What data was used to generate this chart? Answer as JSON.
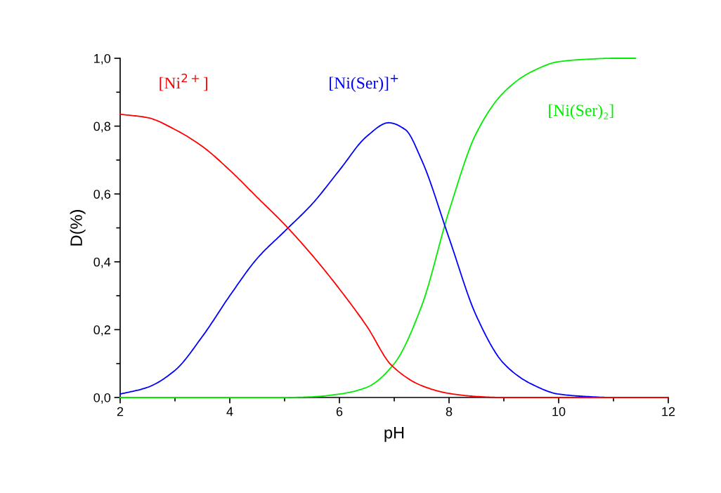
{
  "chart_data": {
    "type": "line",
    "xlabel": "pH",
    "ylabel": "D(%)",
    "xlim": [
      2,
      12
    ],
    "xticks": [
      2,
      4,
      6,
      8,
      10,
      12
    ],
    "ylim": [
      0,
      1.0
    ],
    "yticks": [
      {
        "value": 0,
        "label": "0,0"
      },
      {
        "value": 0.2,
        "label": "0,2"
      },
      {
        "value": 0.4,
        "label": "0,4"
      },
      {
        "value": 0.6,
        "label": "0,6"
      },
      {
        "value": 0.8,
        "label": "0,8"
      },
      {
        "value": 1.0,
        "label": "1,0"
      }
    ],
    "grid": false,
    "legend": false,
    "marker": "none",
    "line_style": "solid",
    "series": [
      {
        "name": "[Ni$^{2+}$]",
        "color": "#ff0000",
        "x": [
          2,
          2.5,
          3,
          3.5,
          4,
          4.5,
          5,
          5.5,
          6,
          6.5,
          6.95,
          7.5,
          8,
          8.5,
          9,
          10,
          11,
          12
        ],
        "values": [
          0.835,
          0.825,
          0.79,
          0.74,
          0.67,
          0.59,
          0.51,
          0.42,
          0.32,
          0.21,
          0.095,
          0.035,
          0.012,
          0.003,
          0.0,
          0.0,
          0.0,
          0.0
        ]
      },
      {
        "name": "[Ni(Ser)]$^{+}$",
        "color": "#0000ff",
        "x": [
          2,
          2.5,
          3,
          3.5,
          4,
          4.5,
          5,
          5.5,
          6,
          6.5,
          6.9,
          7.2,
          7.5,
          8,
          8.5,
          9,
          9.5,
          10,
          10.5,
          11,
          12
        ],
        "values": [
          0.01,
          0.03,
          0.08,
          0.18,
          0.3,
          0.41,
          0.49,
          0.57,
          0.67,
          0.77,
          0.81,
          0.79,
          0.7,
          0.47,
          0.24,
          0.1,
          0.04,
          0.01,
          0.003,
          0.0,
          0.0
        ]
      },
      {
        "name": "[Ni(Ser)₂]",
        "color": "#00ee00",
        "x": [
          2,
          3,
          4,
          5,
          5.5,
          6,
          6.5,
          7,
          7.5,
          8,
          8.5,
          9,
          9.5,
          10,
          10.5,
          11,
          11.4
        ],
        "values": [
          0.0,
          0.0,
          0.0,
          0.0,
          0.002,
          0.01,
          0.03,
          0.1,
          0.27,
          0.55,
          0.78,
          0.9,
          0.96,
          0.99,
          0.997,
          1.0,
          1.0
        ]
      }
    ]
  }
}
